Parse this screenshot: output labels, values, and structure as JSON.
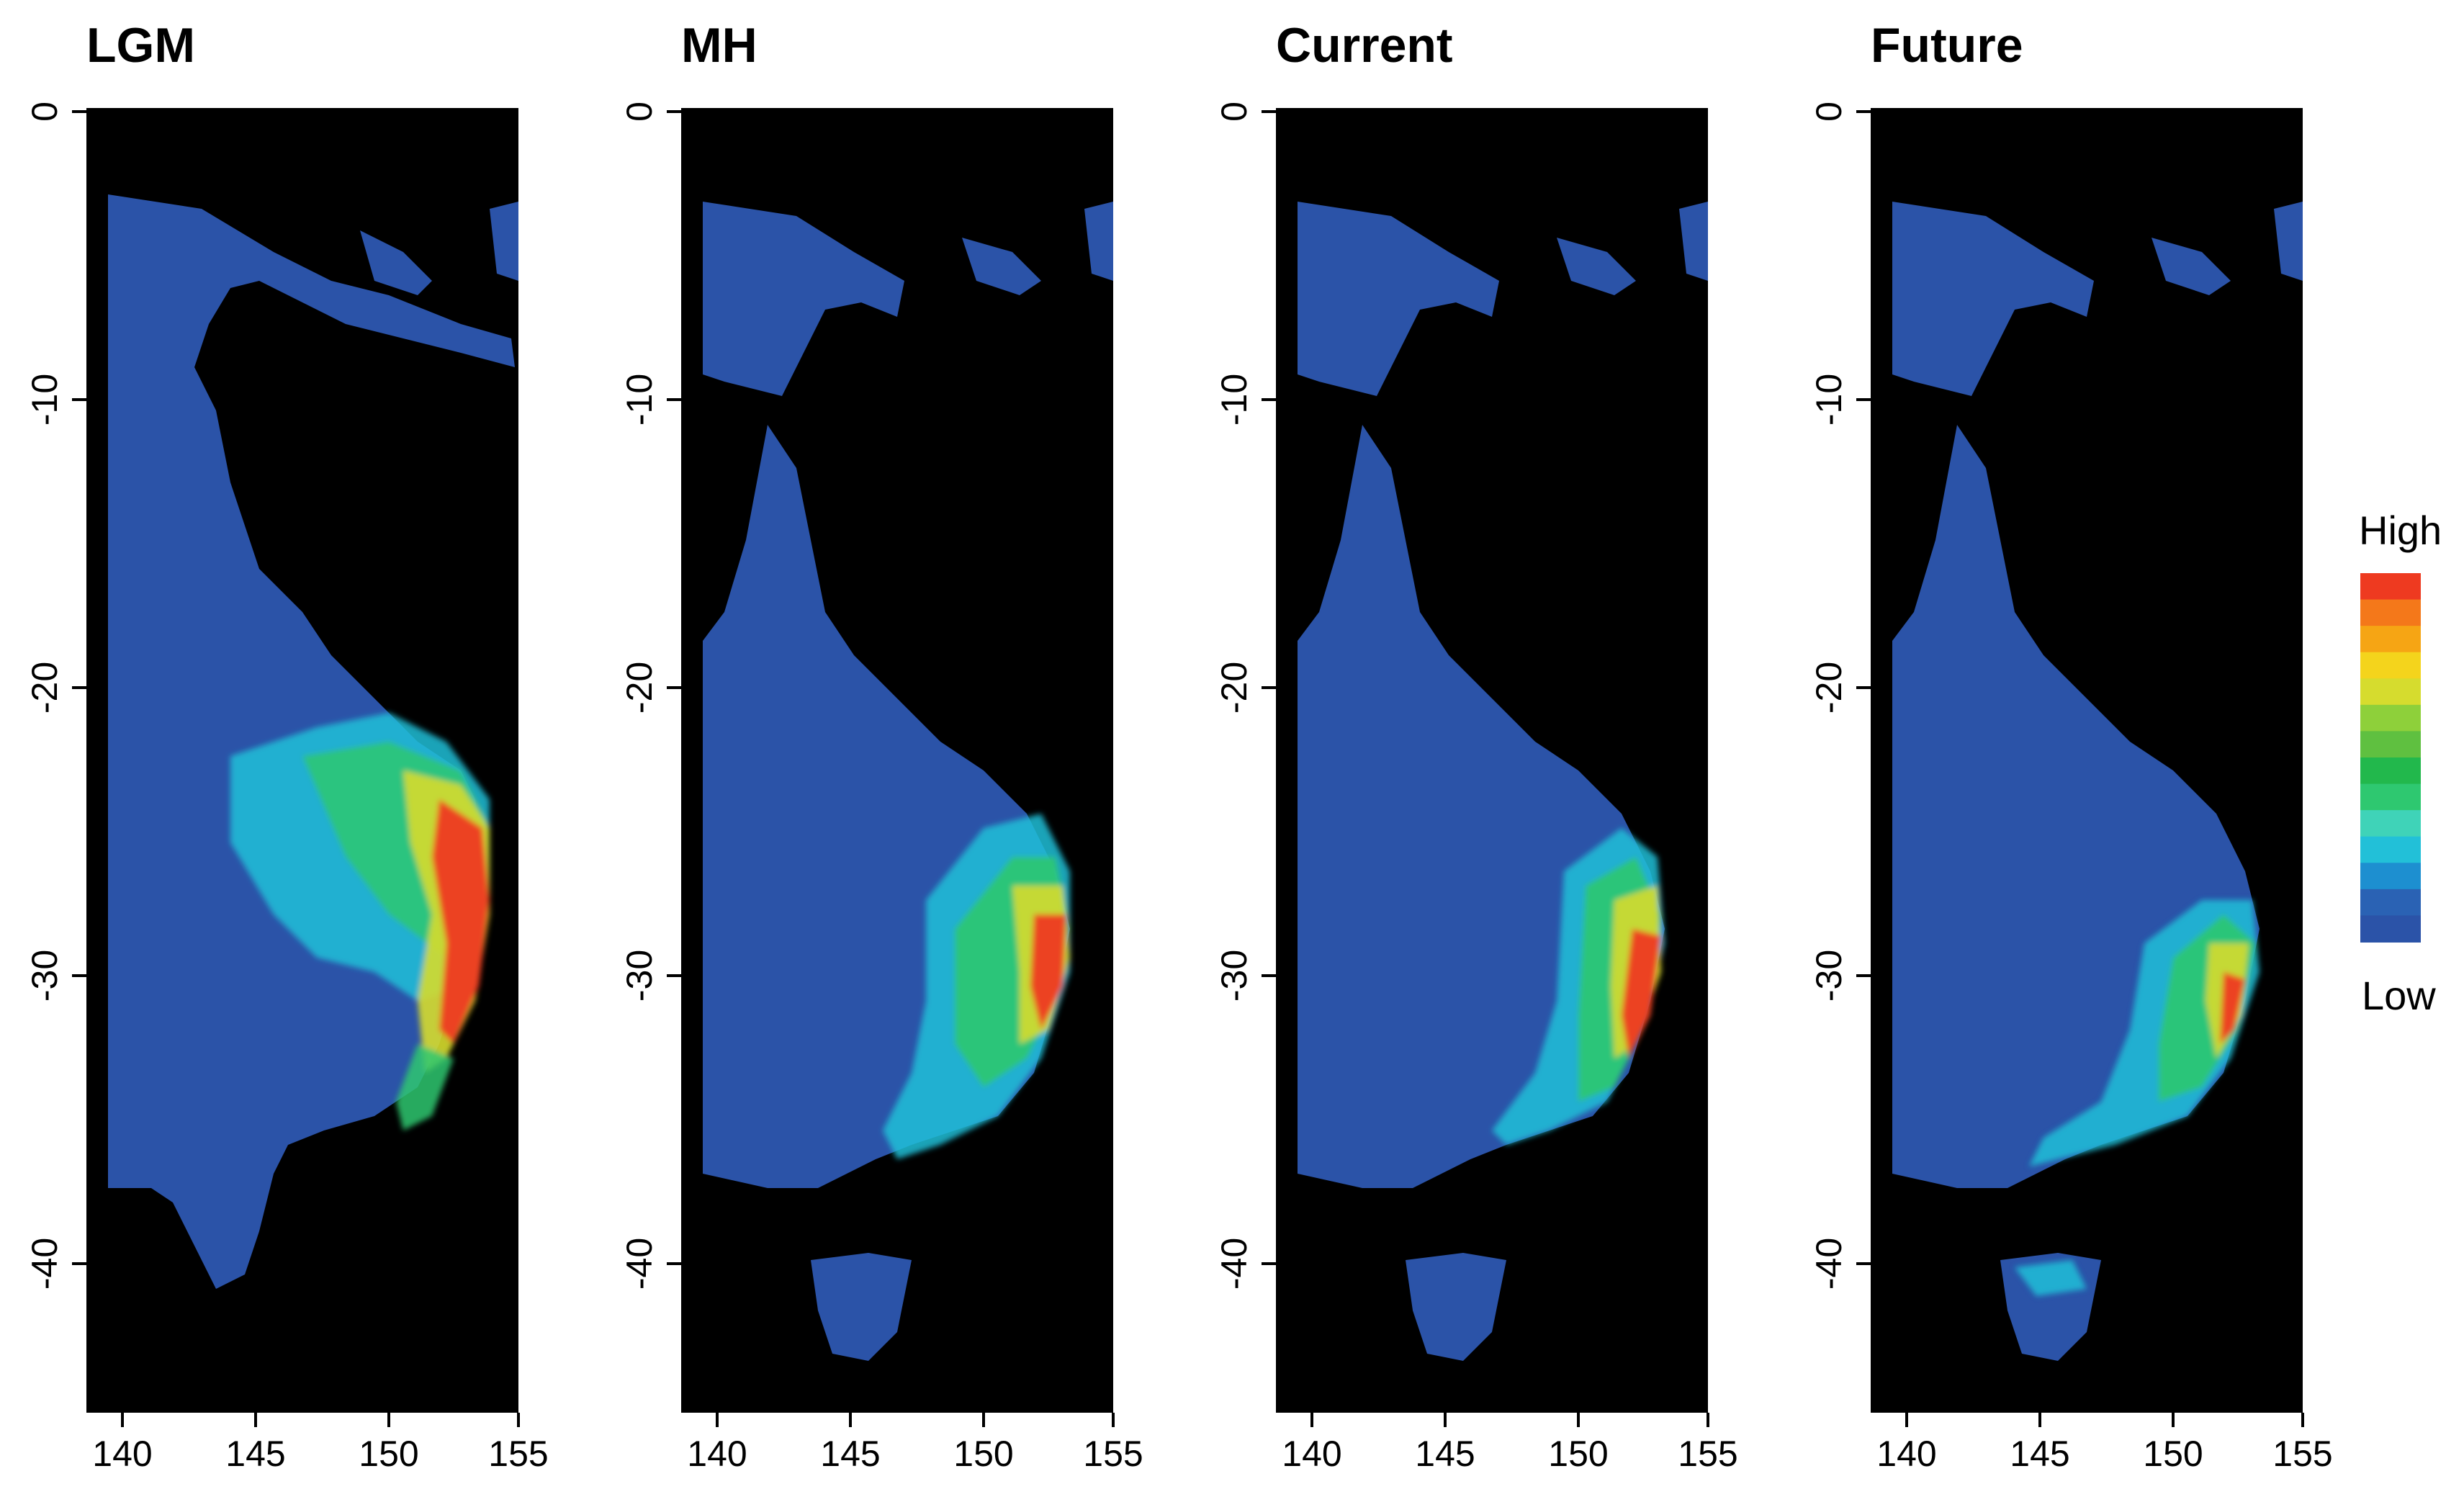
{
  "panels": [
    {
      "title": "LGM"
    },
    {
      "title": "MH"
    },
    {
      "title": "Current"
    },
    {
      "title": "Future"
    }
  ],
  "x_ticks": [
    "140",
    "145",
    "150",
    "155"
  ],
  "y_ticks": [
    "0",
    "-10",
    "-20",
    "-30",
    "-40"
  ],
  "legend": {
    "high_label": "High",
    "low_label": "Low",
    "colors": [
      "#2b53a8",
      "#2a62b4",
      "#1d8fd0",
      "#22c0d8",
      "#3fd3b8",
      "#2ec870",
      "#22b84c",
      "#5fc040",
      "#8ed03a",
      "#d6dc2e",
      "#f4d41c",
      "#f6a514",
      "#f4781a",
      "#ee3a20"
    ]
  },
  "map": {
    "ocean_color": "#000000",
    "land_color": "#2b53a8",
    "suitability_colors": [
      "#2b53a8",
      "#22c0d8",
      "#2ec870",
      "#d6dc2e",
      "#f4781a",
      "#ee3a20"
    ]
  }
}
